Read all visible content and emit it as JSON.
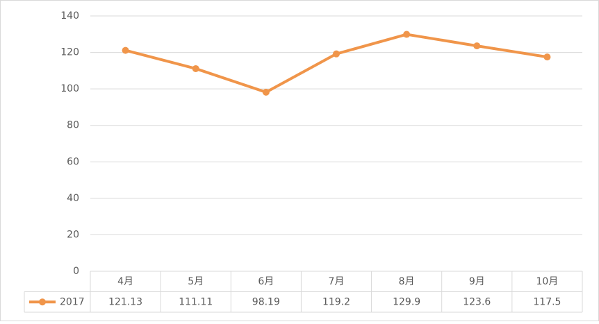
{
  "chart_data": {
    "type": "line",
    "categories": [
      "4月",
      "5月",
      "6月",
      "7月",
      "8月",
      "9月",
      "10月"
    ],
    "series": [
      {
        "name": "2017",
        "color": "#f0954a",
        "values": [
          121.13,
          111.11,
          98.19,
          119.2,
          129.9,
          123.6,
          117.5
        ]
      }
    ],
    "ylim": [
      0,
      140
    ],
    "yticks": [
      0,
      20,
      40,
      60,
      80,
      100,
      120,
      140
    ],
    "grid": true,
    "legend": "table"
  }
}
